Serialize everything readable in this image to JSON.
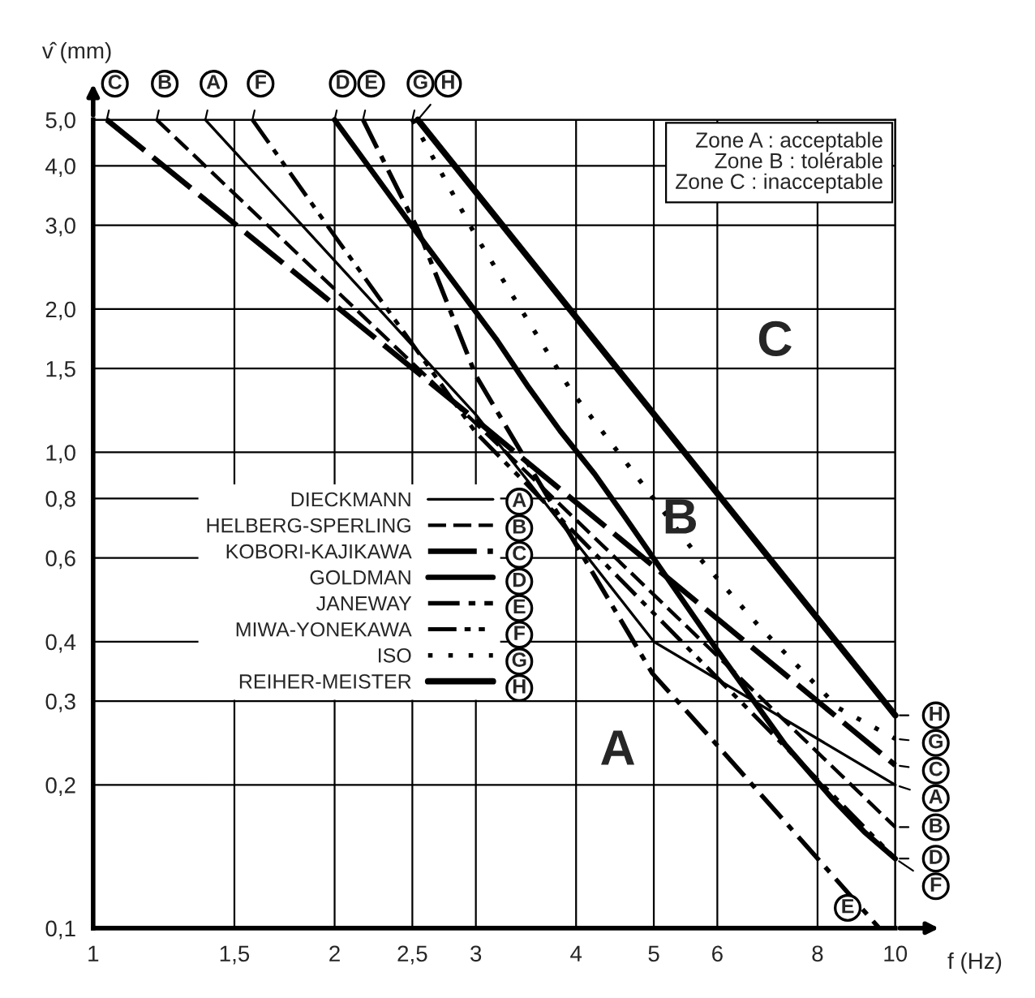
{
  "chart_data": {
    "type": "line",
    "log": "xy",
    "grid": true,
    "legend": "left",
    "xlabel": "f (Hz)",
    "ylabel": "v̂ (mm)",
    "xlim": [
      1,
      10
    ],
    "ylim": [
      0.1,
      5
    ],
    "xticks": [
      1,
      {
        "value": 1.5,
        "label": "1,5"
      },
      2,
      {
        "value": 2.5,
        "label": "2,5"
      },
      3,
      4,
      5,
      6,
      8,
      10
    ],
    "yticks": [
      {
        "value": 0.1,
        "label": "0,1"
      },
      {
        "value": 0.2,
        "label": "0,2"
      },
      {
        "value": 0.3,
        "label": "0,3"
      },
      {
        "value": 0.4,
        "label": "0,4"
      },
      {
        "value": 0.6,
        "label": "0,6"
      },
      {
        "value": 0.8,
        "label": "0,8"
      },
      {
        "value": 1,
        "label": "1,0"
      },
      {
        "value": 1.5,
        "label": "1,5"
      },
      {
        "value": 2,
        "label": "2,0"
      },
      {
        "value": 3,
        "label": "3,0"
      },
      {
        "value": 4,
        "label": "4,0"
      },
      {
        "value": 5,
        "label": "5,0"
      }
    ],
    "series": [
      {
        "name": "DIECKMANN",
        "color": "#000000",
        "line_style": "solid",
        "x": [
          1.38,
          3,
          5,
          10
        ],
        "values": [
          5,
          1.2,
          0.4,
          0.2
        ]
      },
      {
        "name": "HELBERG-SPERLING",
        "color": "#000000",
        "line_style": "dashed",
        "x": [
          1.2,
          3,
          10
        ],
        "values": [
          5,
          1.15,
          0.163
        ]
      },
      {
        "name": "KOBORI-KAJIKAWA",
        "color": "#000000",
        "line_style": "longdash",
        "x": [
          1.04,
          3,
          10
        ],
        "values": [
          5,
          1.17,
          0.22
        ]
      },
      {
        "name": "GOLDMAN",
        "color": "#000000",
        "line_style": "solid",
        "x": [
          2.0,
          2.55,
          3.18,
          3.49,
          3.82,
          4.22,
          4.58,
          5.96,
          7.29,
          8.35,
          9.16,
          10
        ],
        "values": [
          5,
          2.85,
          1.73,
          1.37,
          1.11,
          0.9,
          0.74,
          0.39,
          0.243,
          0.187,
          0.159,
          0.14
        ]
      },
      {
        "name": "JANEWAY",
        "color": "#000000",
        "line_style": "dashdot",
        "x": [
          2.17,
          2.55,
          3.0,
          4.98,
          5.99,
          9.55
        ],
        "values": [
          5,
          2.9,
          1.45,
          0.343,
          0.243,
          0.1
        ]
      },
      {
        "name": "MIWA-YONEKAWA",
        "color": "#000000",
        "line_style": "dashdotdot",
        "x": [
          1.58,
          1.98,
          3,
          10
        ],
        "values": [
          5,
          2.92,
          1.1,
          0.14
        ]
      },
      {
        "name": "ISO",
        "color": "#000000",
        "line_style": "dotted",
        "x": [
          2.5,
          3.0,
          3.94,
          4.94,
          5.65,
          6.77,
          8.5,
          10
        ],
        "values": [
          5,
          2.85,
          1.35,
          0.82,
          0.61,
          0.43,
          0.29,
          0.25
        ]
      },
      {
        "name": "REIHER-MEISTER",
        "color": "#000000",
        "line_style": "solid",
        "x": [
          2.54,
          10
        ],
        "values": [
          5,
          0.28
        ]
      }
    ],
    "annotations": [
      {
        "text": "A",
        "x": 1.38,
        "y": 5
      },
      {
        "text": "B",
        "x": 1.2,
        "y": 5
      },
      {
        "text": "C",
        "x": 1.04,
        "y": 5
      },
      {
        "text": "D",
        "x": 2.0,
        "y": 5
      },
      {
        "text": "E",
        "x": 2.17,
        "y": 5
      },
      {
        "text": "F",
        "x": 1.58,
        "y": 5
      },
      {
        "text": "G",
        "x": 2.5,
        "y": 5
      },
      {
        "text": "H",
        "x": 2.54,
        "y": 5
      },
      {
        "text": "A",
        "x": 10,
        "y": 0.2
      },
      {
        "text": "B",
        "x": 10,
        "y": 0.163
      },
      {
        "text": "C",
        "x": 10,
        "y": 0.22
      },
      {
        "text": "D",
        "x": 10,
        "y": 0.14
      },
      {
        "text": "E",
        "x": 9.55,
        "y": 0.1
      },
      {
        "text": "F",
        "x": 10,
        "y": 0.14
      },
      {
        "text": "G",
        "x": 10,
        "y": 0.25
      },
      {
        "text": "H",
        "x": 10,
        "y": 0.28
      },
      "Zone A : acceptable",
      "Zone B : tolérable",
      "Zone C : inacceptable",
      "A",
      "B",
      "C"
    ]
  }
}
